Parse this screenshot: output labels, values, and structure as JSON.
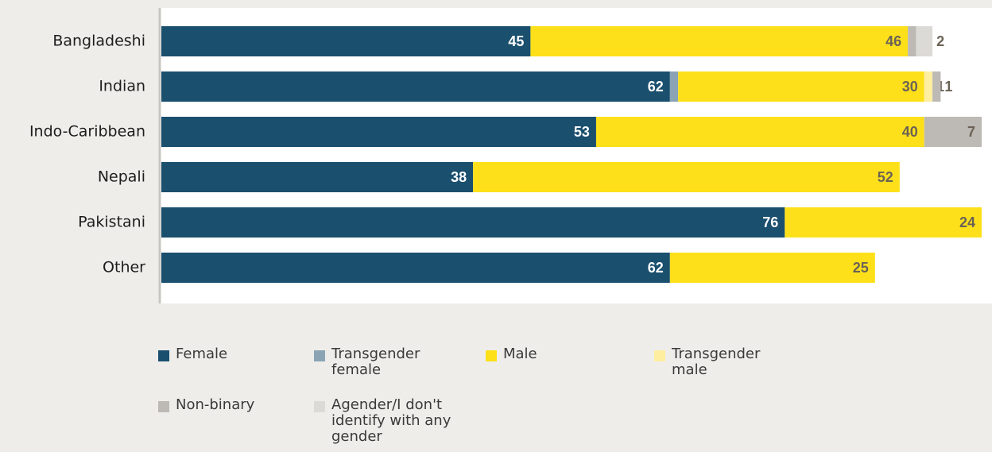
{
  "chart_data": {
    "type": "stacked-bar-horizontal",
    "categories": [
      "Bangladeshi",
      "Indian",
      "Indo-Caribbean",
      "Nepali",
      "Pakistani",
      "Other"
    ],
    "series": [
      {
        "name": "Female",
        "color": "#1a4f6e",
        "values": [
          45,
          62,
          53,
          38,
          76,
          62
        ]
      },
      {
        "name": "Transgender female",
        "color": "#8aa4b5",
        "values": [
          null,
          1,
          null,
          null,
          null,
          null
        ]
      },
      {
        "name": "Male",
        "color": "#fde01a",
        "values": [
          46,
          30,
          40,
          52,
          24,
          25
        ]
      },
      {
        "name": "Transgender male",
        "color": "#fdeea0",
        "values": [
          null,
          1,
          null,
          null,
          null,
          null
        ]
      },
      {
        "name": "Non-binary",
        "color": "#bdbab5",
        "values": [
          1,
          1,
          7,
          null,
          null,
          null
        ]
      },
      {
        "name": "Agender/I don't identify with any gender",
        "color": "#dcdad6",
        "values": [
          2,
          null,
          null,
          null,
          null,
          null
        ]
      }
    ],
    "xlim": [
      0,
      100
    ]
  }
}
